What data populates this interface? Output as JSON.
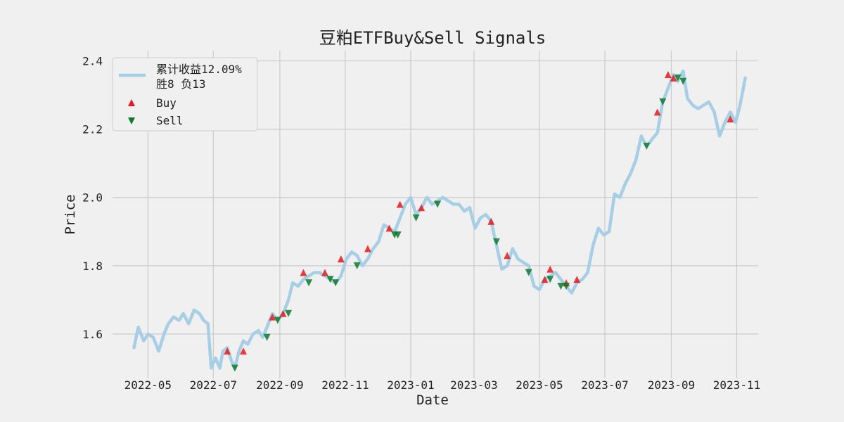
{
  "chart_data": {
    "type": "line",
    "title": "豆粕ETFBuy&Sell Signals",
    "xlabel": "Date",
    "ylabel": "Price",
    "x_ticks": [
      "2022-05",
      "2022-07",
      "2022-09",
      "2022-11",
      "2023-01",
      "2023-03",
      "2023-05",
      "2023-07",
      "2023-09",
      "2023-11"
    ],
    "y_ticks": [
      "1.6",
      "1.8",
      "2.0",
      "2.2",
      "2.4"
    ],
    "xlim": [
      "2022-03-29",
      "2023-11-21"
    ],
    "ylim": [
      1.47,
      2.43
    ],
    "grid": true,
    "legend_position": "top-left",
    "series": [
      {
        "name": "累计收益12.09%\n胜8 负13",
        "color": "#a6cfe6",
        "points": [
          [
            "2022-04-18",
            1.56
          ],
          [
            "2022-04-22",
            1.62
          ],
          [
            "2022-04-27",
            1.58
          ],
          [
            "2022-05-01",
            1.6
          ],
          [
            "2022-05-06",
            1.59
          ],
          [
            "2022-05-11",
            1.55
          ],
          [
            "2022-05-16",
            1.6
          ],
          [
            "2022-05-20",
            1.63
          ],
          [
            "2022-05-25",
            1.65
          ],
          [
            "2022-05-30",
            1.64
          ],
          [
            "2022-06-03",
            1.66
          ],
          [
            "2022-06-08",
            1.63
          ],
          [
            "2022-06-13",
            1.67
          ],
          [
            "2022-06-18",
            1.66
          ],
          [
            "2022-06-22",
            1.64
          ],
          [
            "2022-06-26",
            1.63
          ],
          [
            "2022-06-29",
            1.5
          ],
          [
            "2022-07-03",
            1.53
          ],
          [
            "2022-07-07",
            1.5
          ],
          [
            "2022-07-10",
            1.55
          ],
          [
            "2022-07-14",
            1.56
          ],
          [
            "2022-07-18",
            1.52
          ],
          [
            "2022-07-21",
            1.5
          ],
          [
            "2022-07-25",
            1.55
          ],
          [
            "2022-07-29",
            1.58
          ],
          [
            "2022-08-02",
            1.57
          ],
          [
            "2022-08-07",
            1.6
          ],
          [
            "2022-08-12",
            1.61
          ],
          [
            "2022-08-16",
            1.59
          ],
          [
            "2022-08-20",
            1.62
          ],
          [
            "2022-08-25",
            1.66
          ],
          [
            "2022-08-30",
            1.64
          ],
          [
            "2022-09-04",
            1.66
          ],
          [
            "2022-09-09",
            1.7
          ],
          [
            "2022-09-13",
            1.75
          ],
          [
            "2022-09-18",
            1.74
          ],
          [
            "2022-09-23",
            1.76
          ],
          [
            "2022-09-28",
            1.77
          ],
          [
            "2022-10-03",
            1.78
          ],
          [
            "2022-10-08",
            1.78
          ],
          [
            "2022-10-13",
            1.77
          ],
          [
            "2022-10-18",
            1.76
          ],
          [
            "2022-10-23",
            1.75
          ],
          [
            "2022-10-28",
            1.77
          ],
          [
            "2022-11-02",
            1.82
          ],
          [
            "2022-11-07",
            1.84
          ],
          [
            "2022-11-12",
            1.83
          ],
          [
            "2022-11-17",
            1.8
          ],
          [
            "2022-11-22",
            1.82
          ],
          [
            "2022-11-27",
            1.85
          ],
          [
            "2022-12-02",
            1.87
          ],
          [
            "2022-12-07",
            1.92
          ],
          [
            "2022-12-12",
            1.91
          ],
          [
            "2022-12-17",
            1.9
          ],
          [
            "2022-12-22",
            1.94
          ],
          [
            "2022-12-27",
            1.98
          ],
          [
            "2023-01-01",
            2.0
          ],
          [
            "2023-01-06",
            1.95
          ],
          [
            "2023-01-11",
            1.97
          ],
          [
            "2023-01-16",
            2.0
          ],
          [
            "2023-01-21",
            1.98
          ],
          [
            "2023-01-26",
            1.99
          ],
          [
            "2023-01-31",
            2.0
          ],
          [
            "2023-02-05",
            1.99
          ],
          [
            "2023-02-10",
            1.98
          ],
          [
            "2023-02-15",
            1.98
          ],
          [
            "2023-02-20",
            1.96
          ],
          [
            "2023-02-25",
            1.97
          ],
          [
            "2023-03-02",
            1.91
          ],
          [
            "2023-03-07",
            1.94
          ],
          [
            "2023-03-12",
            1.95
          ],
          [
            "2023-03-17",
            1.93
          ],
          [
            "2023-03-22",
            1.86
          ],
          [
            "2023-03-27",
            1.79
          ],
          [
            "2023-04-01",
            1.8
          ],
          [
            "2023-04-06",
            1.85
          ],
          [
            "2023-04-11",
            1.82
          ],
          [
            "2023-04-16",
            1.81
          ],
          [
            "2023-04-21",
            1.8
          ],
          [
            "2023-04-26",
            1.74
          ],
          [
            "2023-05-01",
            1.73
          ],
          [
            "2023-05-06",
            1.76
          ],
          [
            "2023-05-11",
            1.77
          ],
          [
            "2023-05-16",
            1.78
          ],
          [
            "2023-05-21",
            1.76
          ],
          [
            "2023-05-26",
            1.74
          ],
          [
            "2023-05-31",
            1.72
          ],
          [
            "2023-06-05",
            1.75
          ],
          [
            "2023-06-10",
            1.76
          ],
          [
            "2023-06-15",
            1.78
          ],
          [
            "2023-06-20",
            1.86
          ],
          [
            "2023-06-25",
            1.91
          ],
          [
            "2023-06-30",
            1.89
          ],
          [
            "2023-07-05",
            1.9
          ],
          [
            "2023-07-10",
            2.01
          ],
          [
            "2023-07-15",
            2.0
          ],
          [
            "2023-07-20",
            2.04
          ],
          [
            "2023-07-25",
            2.07
          ],
          [
            "2023-07-30",
            2.11
          ],
          [
            "2023-08-04",
            2.18
          ],
          [
            "2023-08-09",
            2.15
          ],
          [
            "2023-08-14",
            2.17
          ],
          [
            "2023-08-19",
            2.19
          ],
          [
            "2023-08-24",
            2.28
          ],
          [
            "2023-08-29",
            2.32
          ],
          [
            "2023-09-03",
            2.36
          ],
          [
            "2023-09-07",
            2.34
          ],
          [
            "2023-09-12",
            2.37
          ],
          [
            "2023-09-16",
            2.29
          ],
          [
            "2023-09-21",
            2.27
          ],
          [
            "2023-09-26",
            2.26
          ],
          [
            "2023-10-01",
            2.27
          ],
          [
            "2023-10-06",
            2.28
          ],
          [
            "2023-10-11",
            2.25
          ],
          [
            "2023-10-16",
            2.18
          ],
          [
            "2023-10-21",
            2.22
          ],
          [
            "2023-10-26",
            2.25
          ],
          [
            "2023-10-31",
            2.22
          ],
          [
            "2023-11-04",
            2.27
          ],
          [
            "2023-11-09",
            2.35
          ]
        ]
      }
    ],
    "signals": [
      {
        "name": "Buy",
        "marker": "triangle-up",
        "color": "#e41a1c",
        "points": [
          [
            "2022-07-14",
            1.55
          ],
          [
            "2022-07-29",
            1.55
          ],
          [
            "2022-08-25",
            1.65
          ],
          [
            "2022-09-04",
            1.66
          ],
          [
            "2022-09-23",
            1.78
          ],
          [
            "2022-10-13",
            1.78
          ],
          [
            "2022-10-28",
            1.82
          ],
          [
            "2022-11-22",
            1.85
          ],
          [
            "2022-12-12",
            1.91
          ],
          [
            "2022-12-22",
            1.98
          ],
          [
            "2023-01-11",
            1.97
          ],
          [
            "2023-03-17",
            1.93
          ],
          [
            "2023-04-01",
            1.83
          ],
          [
            "2023-05-06",
            1.76
          ],
          [
            "2023-05-11",
            1.79
          ],
          [
            "2023-05-26",
            1.75
          ],
          [
            "2023-06-05",
            1.76
          ],
          [
            "2023-08-19",
            2.25
          ],
          [
            "2023-08-29",
            2.36
          ],
          [
            "2023-09-03",
            2.35
          ],
          [
            "2023-10-26",
            2.23
          ]
        ]
      },
      {
        "name": "Sell",
        "marker": "triangle-down",
        "color": "#0a7a2c",
        "points": [
          [
            "2022-07-21",
            1.5
          ],
          [
            "2022-08-20",
            1.59
          ],
          [
            "2022-08-30",
            1.64
          ],
          [
            "2022-09-09",
            1.66
          ],
          [
            "2022-09-28",
            1.75
          ],
          [
            "2022-10-18",
            1.76
          ],
          [
            "2022-10-23",
            1.75
          ],
          [
            "2022-11-12",
            1.8
          ],
          [
            "2022-12-17",
            1.89
          ],
          [
            "2022-12-20",
            1.89
          ],
          [
            "2023-01-06",
            1.94
          ],
          [
            "2023-01-26",
            1.98
          ],
          [
            "2023-03-22",
            1.87
          ],
          [
            "2023-04-21",
            1.78
          ],
          [
            "2023-05-11",
            1.76
          ],
          [
            "2023-05-21",
            1.74
          ],
          [
            "2023-05-26",
            1.74
          ],
          [
            "2023-08-09",
            2.15
          ],
          [
            "2023-08-24",
            2.28
          ],
          [
            "2023-09-07",
            2.35
          ],
          [
            "2023-09-12",
            2.34
          ]
        ]
      }
    ]
  }
}
